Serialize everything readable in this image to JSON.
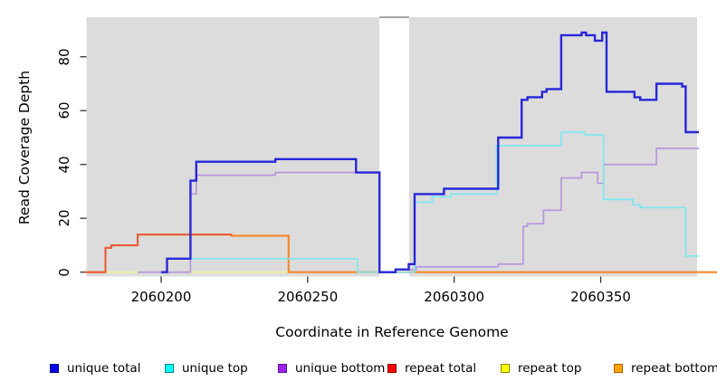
{
  "figure": {
    "xlabel": "Coordinate in Reference Genome",
    "ylabel": "Read Coverage Depth"
  },
  "chart_data": {
    "type": "line",
    "title": "",
    "xlabel": "Coordinate in Reference Genome",
    "ylabel": "Read Coverage Depth",
    "x_ticks": [
      2060200,
      2060250,
      2060300,
      2060350
    ],
    "x_tick_labels": [
      "2060200",
      "2060250",
      "2060300",
      "2060350"
    ],
    "y_ticks": [
      0,
      20,
      40,
      60,
      80
    ],
    "y_tick_labels": [
      "0",
      "20",
      "40",
      "60",
      "80"
    ],
    "xlim": [
      2060174,
      2060390
    ],
    "ylim": [
      0,
      95
    ],
    "grid": false,
    "plot_bg_color": "#dcdcdc",
    "no_data_gap": [
      2060274.5,
      2060284.6
    ],
    "bg_regions": [
      [
        2060174,
        2060274.5
      ],
      [
        2060284.6,
        2060383
      ]
    ],
    "gap_top_mark_color": "#9b9b9b",
    "series": [
      {
        "name": "repeat-top",
        "label": "repeat top",
        "color": "#f1f193",
        "width": 1.6,
        "steps": [
          [
            2060174,
            0
          ]
        ],
        "end": 2060383
      },
      {
        "name": "repeat-bottom",
        "label": "repeat bottom",
        "color": "#f5872e",
        "width": 2.2,
        "steps": [
          [
            2060174,
            0
          ],
          [
            2060181,
            9
          ],
          [
            2060183,
            10
          ],
          [
            2060192,
            14
          ],
          [
            2060224,
            13.5
          ],
          [
            2060243.5,
            0
          ]
        ],
        "end": 2060390
      },
      {
        "name": "repeat-total",
        "label": "repeat total",
        "color": "#e65c3c",
        "width": 2.0,
        "steps": [
          [
            2060174,
            0
          ],
          [
            2060181,
            9
          ],
          [
            2060183,
            10
          ],
          [
            2060192,
            14
          ]
        ],
        "end": 2060224
      },
      {
        "name": "unique-bottom",
        "label": "unique bottom",
        "color": "#b792dd",
        "width": 1.6,
        "steps": [
          [
            2060192,
            0
          ],
          [
            2060210,
            29
          ],
          [
            2060212,
            36
          ],
          [
            2060239,
            37
          ],
          [
            2060274.5,
            0
          ],
          [
            2060280,
            1
          ],
          [
            2060287,
            2
          ],
          [
            2060315,
            3
          ],
          [
            2060323.5,
            17
          ],
          [
            2060325,
            18
          ],
          [
            2060330.5,
            23
          ],
          [
            2060336.5,
            35
          ],
          [
            2060343.5,
            37
          ],
          [
            2060349,
            33
          ],
          [
            2060351,
            40
          ],
          [
            2060369,
            46
          ]
        ],
        "end": 2060383.5
      },
      {
        "name": "unique-top",
        "label": "unique top",
        "color": "#7fe7f0",
        "width": 1.7,
        "steps": [
          [
            2060202,
            5
          ],
          [
            2060267,
            0
          ],
          [
            2060286.5,
            26
          ],
          [
            2060292.5,
            28
          ],
          [
            2060299,
            29
          ],
          [
            2060314.5,
            47
          ],
          [
            2060336.5,
            52
          ],
          [
            2060344.5,
            51
          ],
          [
            2060351,
            27
          ],
          [
            2060361,
            25
          ],
          [
            2060363.5,
            24
          ],
          [
            2060379,
            6
          ]
        ],
        "end": 2060383.5
      },
      {
        "name": "unique-total",
        "label": "unique total",
        "color": "#2727d8",
        "width": 2.4,
        "steps": [
          [
            2060200,
            0
          ],
          [
            2060202,
            5
          ],
          [
            2060210,
            34
          ],
          [
            2060212,
            41
          ],
          [
            2060239,
            42
          ],
          [
            2060266.5,
            37
          ],
          [
            2060274.5,
            0
          ],
          [
            2060280,
            1
          ],
          [
            2060284.5,
            3
          ],
          [
            2060286.5,
            29
          ],
          [
            2060296.5,
            31
          ],
          [
            2060315,
            50
          ],
          [
            2060323,
            64
          ],
          [
            2060325,
            65
          ],
          [
            2060330,
            67
          ],
          [
            2060331.5,
            68
          ],
          [
            2060336.5,
            88
          ],
          [
            2060343.5,
            89
          ],
          [
            2060345,
            88
          ],
          [
            2060348,
            86
          ],
          [
            2060350.5,
            89
          ],
          [
            2060352,
            67
          ],
          [
            2060361.5,
            65
          ],
          [
            2060363.5,
            64
          ],
          [
            2060369,
            70
          ],
          [
            2060377.8,
            69
          ],
          [
            2060379,
            52
          ]
        ],
        "end": 2060383.5
      }
    ],
    "legend": [
      {
        "label": "unique total",
        "fill": "#0000ee",
        "border": "#000080"
      },
      {
        "label": "unique top",
        "fill": "#00ffff",
        "border": "#008b8b"
      },
      {
        "label": "unique bottom",
        "fill": "#a020f0",
        "border": "#551a8b"
      },
      {
        "label": "repeat total",
        "fill": "#ff0000",
        "border": "#8b0000"
      },
      {
        "label": "repeat top",
        "fill": "#ffff00",
        "border": "#8b8b00"
      },
      {
        "label": "repeat bottom",
        "fill": "#ffa500",
        "border": "#b06000"
      }
    ],
    "legend_position": "bottom"
  }
}
